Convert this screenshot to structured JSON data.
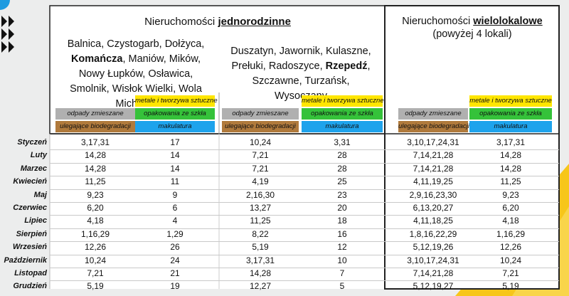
{
  "header": {
    "left_title": {
      "prefix": "Nieruchomości ",
      "bold": "jednorodzinne"
    },
    "right_title": {
      "prefix": "Nieruchomości ",
      "bold": "wielolokalowe",
      "subtitle": "(powyżej 4 lokali)"
    }
  },
  "areas": [
    {
      "before": "Balnica, Czystogarb, Dołżyca, ",
      "bold": "Komańcza",
      "after": ", Maniów, Mików, Nowy Łupków, Osławica, Smolnik, Wisłok Wielki, Wola Michowa"
    },
    {
      "before": "Duszatyn, Jawornik, Kulaszne, Prełuki, Radoszyce, ",
      "bold": "Rzepedź",
      "after": ", Szczawne, Turzańsk, Wysoczany"
    }
  ],
  "legend": {
    "metals": "metale i tworzywa sztuczne",
    "mixed": "odpady zmieszane",
    "glass": "opakowania ze szkła",
    "bio": "ulegające biodegradacji",
    "paper": "makulatura"
  },
  "table": {
    "rows": [
      [
        "Styczeń",
        "3,17,31",
        "17",
        "10,24",
        "3,31",
        "3,10,17,24,31",
        "3,17,31"
      ],
      [
        "Luty",
        "14,28",
        "14",
        "7,21",
        "28",
        "7,14,21,28",
        "14,28"
      ],
      [
        "Marzec",
        "14,28",
        "14",
        "7,21",
        "28",
        "7,14,21,28",
        "14,28"
      ],
      [
        "Kwiecień",
        "11,25",
        "11",
        "4,19",
        "25",
        "4,11,19,25",
        "11,25"
      ],
      [
        "Maj",
        "9,23",
        "9",
        "2,16,30",
        "23",
        "2,9,16,23,30",
        "9,23"
      ],
      [
        "Czerwiec",
        "6,20",
        "6",
        "13,27",
        "20",
        "6,13,20,27",
        "6,20"
      ],
      [
        "Lipiec",
        "4,18",
        "4",
        "11,25",
        "18",
        "4,11,18,25",
        "4,18"
      ],
      [
        "Sierpień",
        "1,16,29",
        "1,29",
        "8,22",
        "16",
        "1,8,16,22,29",
        "1,16,29"
      ],
      [
        "Wrzesień",
        "12,26",
        "26",
        "5,19",
        "12",
        "5,12,19,26",
        "12,26"
      ],
      [
        "Październik",
        "10,24",
        "24",
        "3,17,31",
        "10",
        "3,10,17,24,31",
        "10,24"
      ],
      [
        "Listopad",
        "7,21",
        "21",
        "14,28",
        "7",
        "7,14,21,28",
        "7,21"
      ],
      [
        "Grudzień",
        "5,19",
        "19",
        "12,27",
        "5",
        "5,12,19,27",
        "5,19"
      ]
    ]
  }
}
